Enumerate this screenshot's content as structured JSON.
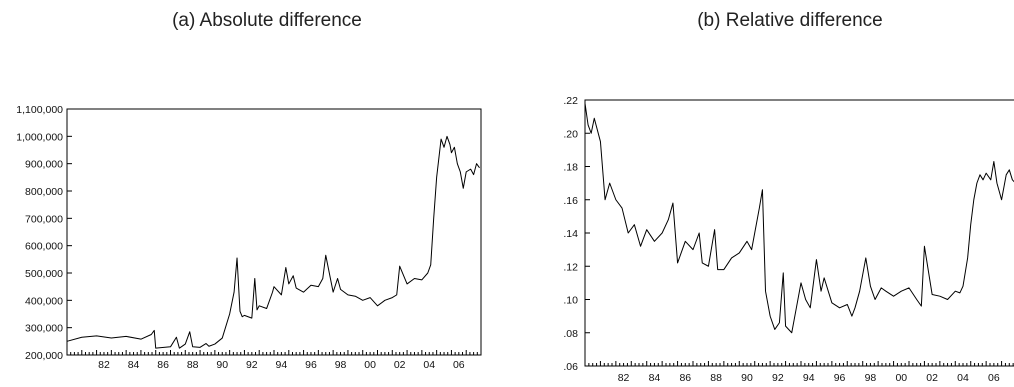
{
  "chart_data": [
    {
      "type": "line",
      "title": "(a) Absolute difference",
      "xlabel": "",
      "ylabel": "",
      "x_tick_labels": [
        "82",
        "84",
        "86",
        "88",
        "90",
        "92",
        "94",
        "96",
        "98",
        "00",
        "02",
        "04",
        "06"
      ],
      "x_tick_years": [
        1982,
        1984,
        1986,
        1988,
        1990,
        1992,
        1994,
        1996,
        1998,
        2000,
        2002,
        2004,
        2006
      ],
      "xlim": [
        1980.0,
        2008.0
      ],
      "y_tick_labels": [
        "200,000",
        "300,000",
        "400,000",
        "500,000",
        "600,000",
        "700,000",
        "800,000",
        "900,000",
        "1,000,000",
        "1,100,000"
      ],
      "y_tick_values": [
        200000,
        300000,
        400000,
        500000,
        600000,
        700000,
        800000,
        900000,
        1000000,
        1100000
      ],
      "ylim": [
        200000,
        1100000
      ],
      "grid": false,
      "legend": "none",
      "x": [
        1980.0,
        1981.0,
        1982.0,
        1983.0,
        1984.0,
        1985.0,
        1985.7,
        1985.9,
        1986.0,
        1987.0,
        1987.4,
        1987.6,
        1988.0,
        1988.3,
        1988.5,
        1989.0,
        1989.4,
        1989.6,
        1990.0,
        1990.5,
        1991.0,
        1991.3,
        1991.5,
        1991.7,
        1991.85,
        1992.0,
        1992.5,
        1992.7,
        1992.85,
        1993.0,
        1993.5,
        1993.9,
        1994.0,
        1994.5,
        1994.8,
        1995.0,
        1995.3,
        1995.5,
        1996.0,
        1996.5,
        1997.0,
        1997.3,
        1997.5,
        1998.0,
        1998.3,
        1998.5,
        1999.0,
        1999.5,
        2000.0,
        2000.5,
        2001.0,
        2001.5,
        2002.0,
        2002.3,
        2002.5,
        2003.0,
        2003.5,
        2004.0,
        2004.4,
        2004.6,
        2004.8,
        2005.0,
        2005.3,
        2005.5,
        2005.7,
        2005.9,
        2006.0,
        2006.2,
        2006.4,
        2006.6,
        2006.8,
        2007.0,
        2007.3,
        2007.5,
        2007.7,
        2007.9
      ],
      "y": [
        250000,
        265000,
        270000,
        262000,
        268000,
        258000,
        275000,
        290000,
        225000,
        230000,
        265000,
        225000,
        240000,
        285000,
        230000,
        228000,
        242000,
        232000,
        240000,
        262000,
        350000,
        430000,
        555000,
        360000,
        340000,
        345000,
        335000,
        480000,
        365000,
        380000,
        370000,
        430000,
        450000,
        420000,
        520000,
        460000,
        490000,
        445000,
        430000,
        455000,
        450000,
        480000,
        565000,
        430000,
        480000,
        440000,
        420000,
        415000,
        400000,
        410000,
        380000,
        400000,
        410000,
        420000,
        525000,
        460000,
        480000,
        475000,
        500000,
        530000,
        700000,
        850000,
        990000,
        960000,
        1000000,
        970000,
        940000,
        960000,
        900000,
        870000,
        810000,
        870000,
        880000,
        860000,
        900000,
        885000
      ]
    },
    {
      "type": "line",
      "title": "(b) Relative difference",
      "xlabel": "",
      "ylabel": "",
      "x_tick_labels": [
        "82",
        "84",
        "86",
        "88",
        "90",
        "92",
        "94",
        "96",
        "98",
        "00",
        "02",
        "04",
        "06"
      ],
      "x_tick_years": [
        1982,
        1984,
        1986,
        1988,
        1990,
        1992,
        1994,
        1996,
        1998,
        2000,
        2002,
        2004,
        2006
      ],
      "xlim": [
        1980.0,
        2008.0
      ],
      "y_tick_labels": [
        ".06",
        ".08",
        ".10",
        ".12",
        ".14",
        ".16",
        ".18",
        ".20",
        ".22"
      ],
      "y_tick_values": [
        0.06,
        0.08,
        0.1,
        0.12,
        0.14,
        0.16,
        0.18,
        0.2,
        0.22
      ],
      "ylim": [
        0.06,
        0.22
      ],
      "grid": false,
      "legend": "none",
      "x": [
        1980.0,
        1980.2,
        1980.4,
        1980.6,
        1981.0,
        1981.3,
        1981.6,
        1982.0,
        1982.4,
        1982.8,
        1983.2,
        1983.6,
        1984.0,
        1984.5,
        1985.0,
        1985.4,
        1985.7,
        1986.0,
        1986.5,
        1987.0,
        1987.4,
        1987.6,
        1988.0,
        1988.4,
        1988.6,
        1989.0,
        1989.5,
        1990.0,
        1990.5,
        1990.8,
        1991.0,
        1991.3,
        1991.5,
        1991.7,
        1992.0,
        1992.3,
        1992.6,
        1992.85,
        1993.0,
        1993.4,
        1993.7,
        1994.0,
        1994.3,
        1994.6,
        1995.0,
        1995.3,
        1995.5,
        1996.0,
        1996.5,
        1997.0,
        1997.3,
        1997.5,
        1997.8,
        1998.2,
        1998.5,
        1998.8,
        1999.2,
        1999.5,
        2000.0,
        2000.5,
        2001.0,
        2001.5,
        2001.8,
        2002.0,
        2002.5,
        2003.0,
        2003.5,
        2004.0,
        2004.3,
        2004.5,
        2004.8,
        2005.0,
        2005.2,
        2005.4,
        2005.6,
        2005.8,
        2006.0,
        2006.3,
        2006.5,
        2006.7,
        2007.0,
        2007.3,
        2007.5,
        2007.7,
        2007.9
      ],
      "y": [
        0.218,
        0.205,
        0.2,
        0.209,
        0.195,
        0.16,
        0.17,
        0.16,
        0.155,
        0.14,
        0.145,
        0.132,
        0.142,
        0.135,
        0.14,
        0.148,
        0.158,
        0.122,
        0.135,
        0.13,
        0.14,
        0.122,
        0.12,
        0.142,
        0.118,
        0.118,
        0.125,
        0.128,
        0.135,
        0.13,
        0.14,
        0.155,
        0.166,
        0.105,
        0.09,
        0.082,
        0.086,
        0.116,
        0.084,
        0.08,
        0.095,
        0.11,
        0.1,
        0.095,
        0.124,
        0.105,
        0.113,
        0.098,
        0.095,
        0.097,
        0.09,
        0.095,
        0.105,
        0.125,
        0.108,
        0.1,
        0.107,
        0.105,
        0.102,
        0.105,
        0.107,
        0.1,
        0.096,
        0.132,
        0.103,
        0.102,
        0.1,
        0.105,
        0.104,
        0.108,
        0.125,
        0.145,
        0.16,
        0.17,
        0.175,
        0.172,
        0.176,
        0.172,
        0.183,
        0.17,
        0.16,
        0.175,
        0.178,
        0.172,
        0.17
      ]
    }
  ]
}
